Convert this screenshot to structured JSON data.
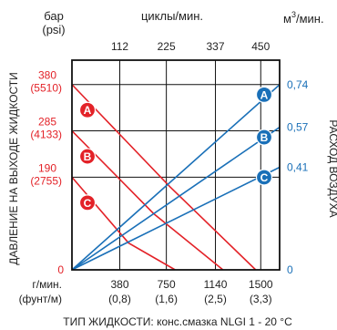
{
  "chart_data": {
    "type": "line",
    "top_left_unit": {
      "main": "бар",
      "sub": "(psi)"
    },
    "top_axis_title": "циклы/мин.",
    "top_right_unit_prefix": "м",
    "top_right_unit_exp": "3",
    "top_right_unit_suffix": "/мин.",
    "left_axis_title": "ДАВЛЕНИЕ НА ВЫХОДЕ ЖИДКОСТИ",
    "right_axis_title": "РАСХОД ВОЗДУХА",
    "bottom_title": "ТИП ЖИДКОСТИ: конс.смазка NLGI 1 - 20 °C",
    "x_unit_primary": "г/мин.",
    "x_unit_secondary": "(фунт/м)",
    "x_ticks": [
      {
        "value": 380,
        "primary": "380",
        "secondary": "(0,8)"
      },
      {
        "value": 750,
        "primary": "750",
        "secondary": "(1,6)"
      },
      {
        "value": 1140,
        "primary": "1140",
        "secondary": "(2,5)"
      },
      {
        "value": 1500,
        "primary": "1500",
        "secondary": "(3,3)"
      }
    ],
    "x_zero_label": "0",
    "top_ticks": [
      "112",
      "225",
      "337",
      "450"
    ],
    "y_left_ticks": [
      {
        "value": 380,
        "primary": "380",
        "secondary": "(5510)"
      },
      {
        "value": 285,
        "primary": "285",
        "secondary": "(4133)"
      },
      {
        "value": 190,
        "primary": "190",
        "secondary": "(2755)"
      }
    ],
    "y_left_zero_label": "0",
    "y_right_ticks": [
      {
        "value": 0.74,
        "label": "0,74"
      },
      {
        "value": 0.57,
        "label": "0,57"
      },
      {
        "value": 0.41,
        "label": "0,41"
      }
    ],
    "y_right_zero_label": "0",
    "xlim": [
      0,
      1650
    ],
    "ylim_left": [
      0,
      430
    ],
    "ylim_right": [
      0,
      0.838
    ],
    "pressure_color": "#e32228",
    "air_color": "#1a70b8",
    "series": [
      {
        "name": "A",
        "axis": "left",
        "x": [
          0,
          780,
          1460
        ],
        "y": [
          380,
          170,
          0
        ]
      },
      {
        "name": "B",
        "axis": "left",
        "x": [
          0,
          650,
          1200
        ],
        "y": [
          285,
          115,
          0
        ]
      },
      {
        "name": "C",
        "axis": "left",
        "x": [
          0,
          450,
          820
        ],
        "y": [
          190,
          55,
          0
        ]
      },
      {
        "name": "A",
        "axis": "right",
        "x": [
          0,
          1650
        ],
        "y": [
          0,
          0.74
        ]
      },
      {
        "name": "B",
        "axis": "right",
        "x": [
          0,
          1650
        ],
        "y": [
          0,
          0.57
        ]
      },
      {
        "name": "C",
        "axis": "right",
        "x": [
          0,
          1650
        ],
        "y": [
          0,
          0.41
        ]
      }
    ]
  }
}
